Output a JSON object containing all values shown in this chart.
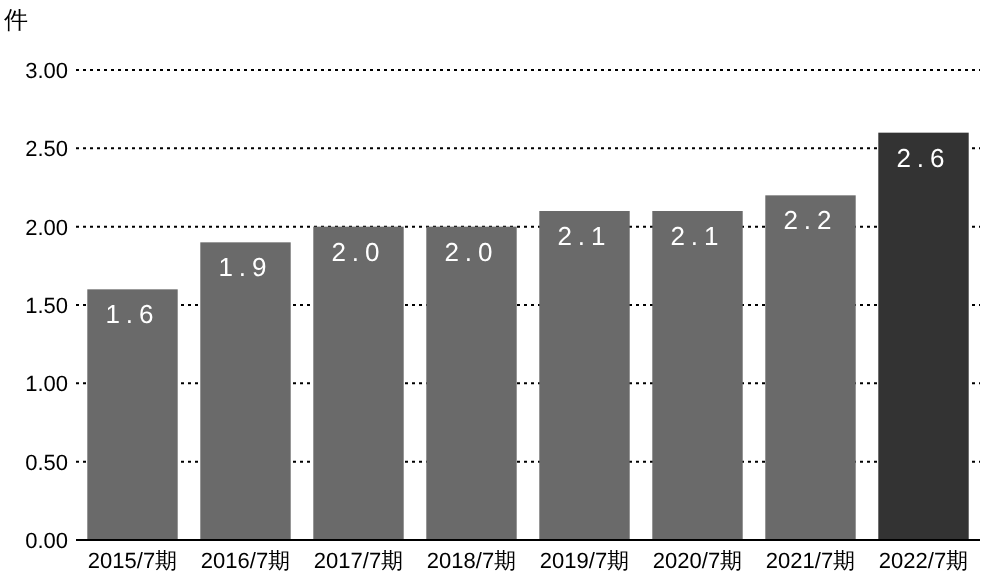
{
  "chart_data": {
    "type": "bar",
    "ylabel": "件",
    "categories": [
      "2015/7期",
      "2016/7期",
      "2017/7期",
      "2018/7期",
      "2019/7期",
      "2020/7期",
      "2021/7期",
      "2022/7期"
    ],
    "values": [
      1.6,
      1.9,
      2.0,
      2.0,
      2.1,
      2.1,
      2.2,
      2.6
    ],
    "colors": [
      "#6a6a6a",
      "#6a6a6a",
      "#6a6a6a",
      "#6a6a6a",
      "#6a6a6a",
      "#6a6a6a",
      "#6a6a6a",
      "#333333"
    ],
    "value_labels": [
      "1.6",
      "1.9",
      "2.0",
      "2.0",
      "2.1",
      "2.1",
      "2.2",
      "2.6"
    ],
    "ylim": [
      0,
      3
    ],
    "yticks": [
      {
        "value": 0,
        "label": "0.00"
      },
      {
        "value": 0.5,
        "label": "0.50"
      },
      {
        "value": 1,
        "label": "1.00"
      },
      {
        "value": 1.5,
        "label": "1.50"
      },
      {
        "value": 2,
        "label": "2.00"
      },
      {
        "value": 2.5,
        "label": "2.50"
      },
      {
        "value": 3,
        "label": "3.00"
      }
    ],
    "grid": "y"
  }
}
